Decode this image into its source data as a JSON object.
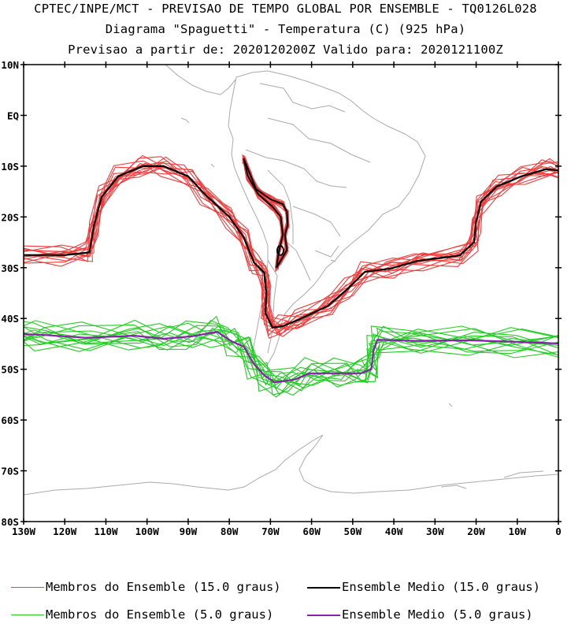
{
  "titles": {
    "line1": "CPTEC/INPE/MCT - PREVISAO DE TEMPO GLOBAL POR ENSEMBLE - TQ0126L028",
    "line2": "Diagrama \"Spaguetti\" - Temperatura (C) (925 hPa)",
    "line3": "Previsao a partir de: 2020120200Z  Valido para: 2020121100Z"
  },
  "map": {
    "lat_ticks": [
      "10N",
      "EQ",
      "10S",
      "20S",
      "30S",
      "40S",
      "50S",
      "60S",
      "70S",
      "80S"
    ],
    "lon_ticks": [
      "130W",
      "120W",
      "110W",
      "100W",
      "90W",
      "80W",
      "70W",
      "60W",
      "50W",
      "40W",
      "30W",
      "20W",
      "10W",
      "0"
    ],
    "lat_range": [
      10,
      -80
    ],
    "lon_range": [
      -130,
      0
    ],
    "colors": {
      "members15": "#f03c3c",
      "mean15": "#000000",
      "members5": "#22cc22",
      "mean5": "#8a1fb0",
      "coast": "#aaaaaa"
    }
  },
  "legend": {
    "members15": "Membros do Ensemble (15.0 graus)",
    "mean15": "Ensemble Medio (15.0 graus)",
    "members5": "Membros do Ensemble (5.0 graus)",
    "mean5": "Ensemble Medio (5.0 graus)"
  }
}
